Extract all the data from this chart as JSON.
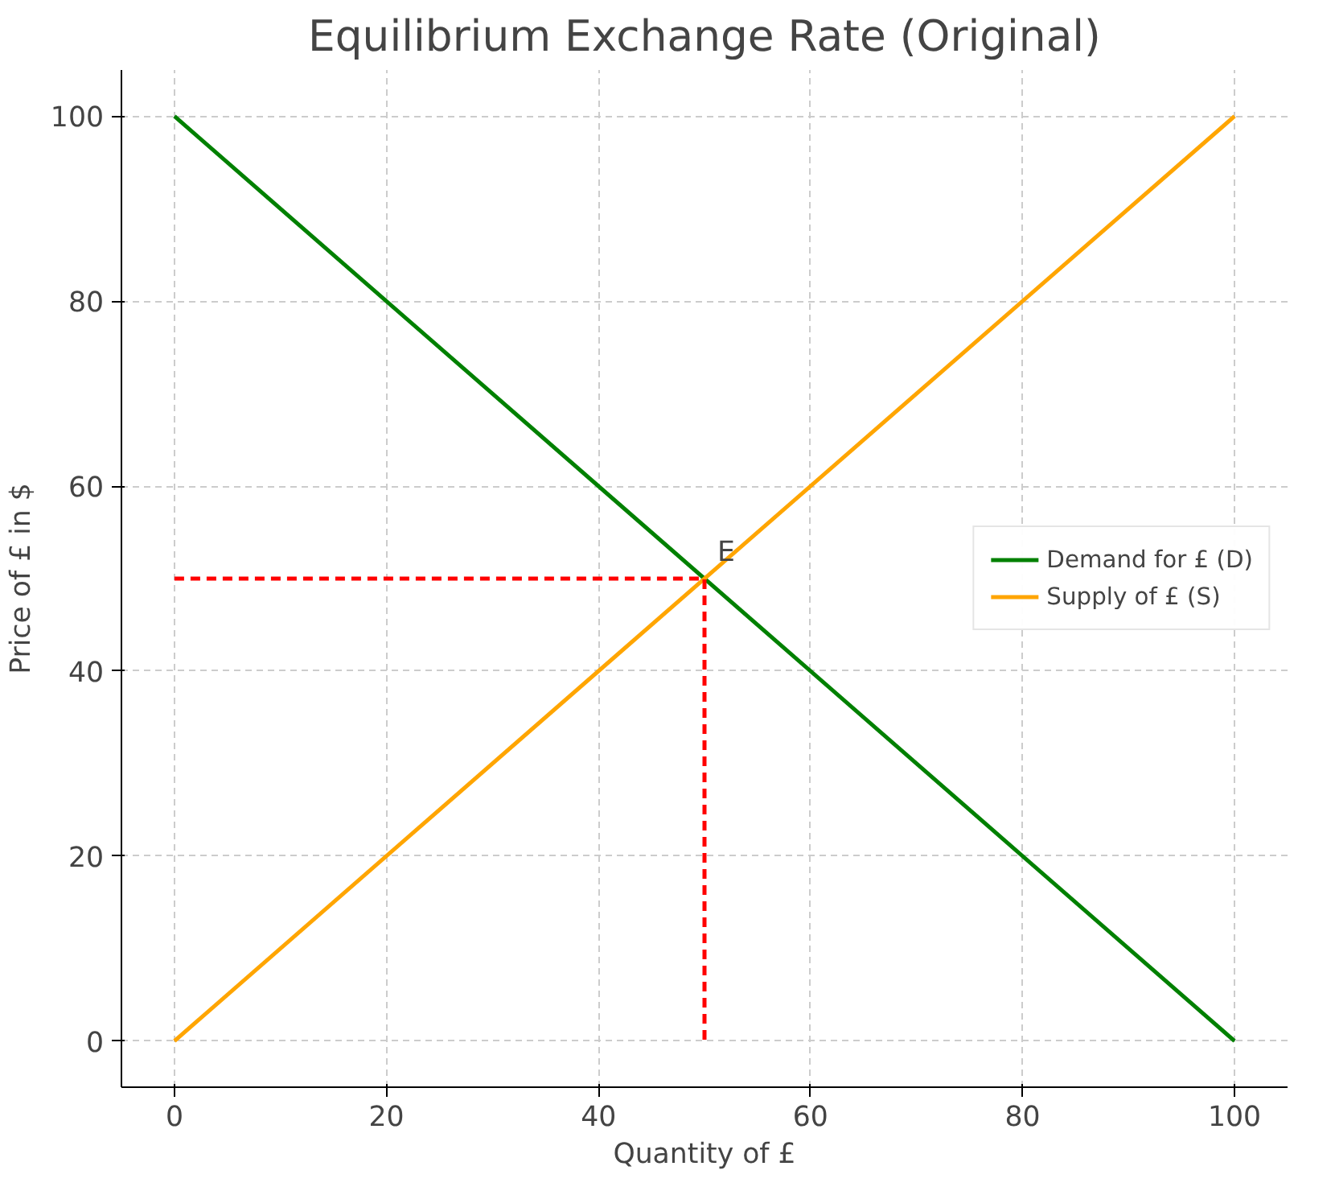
{
  "chart_data": {
    "type": "line",
    "title": "Equilibrium Exchange Rate (Original)",
    "xlabel": "Quantity of £",
    "ylabel": "Price of £ in $",
    "xlim": [
      -5,
      105
    ],
    "ylim": [
      -5,
      105
    ],
    "xticks": [
      0,
      20,
      40,
      60,
      80,
      100
    ],
    "yticks": [
      0,
      20,
      40,
      60,
      80,
      100
    ],
    "grid": true,
    "legend": "right",
    "line_style": "solid",
    "series": [
      {
        "name": "Demand for £ (D)",
        "color": "#008000",
        "x": [
          0,
          100
        ],
        "values": [
          100,
          0
        ]
      },
      {
        "name": "Supply of £ (S)",
        "color": "#ffa500",
        "x": [
          0,
          100
        ],
        "values": [
          0,
          100
        ]
      },
      {
        "color": "#ff0000",
        "x": [
          0,
          50,
          50
        ],
        "values": [
          50,
          50,
          0
        ],
        "line_style": "dashed"
      }
    ],
    "annotations": [
      {
        "text": "E",
        "x": 50,
        "y": 50
      }
    ]
  }
}
